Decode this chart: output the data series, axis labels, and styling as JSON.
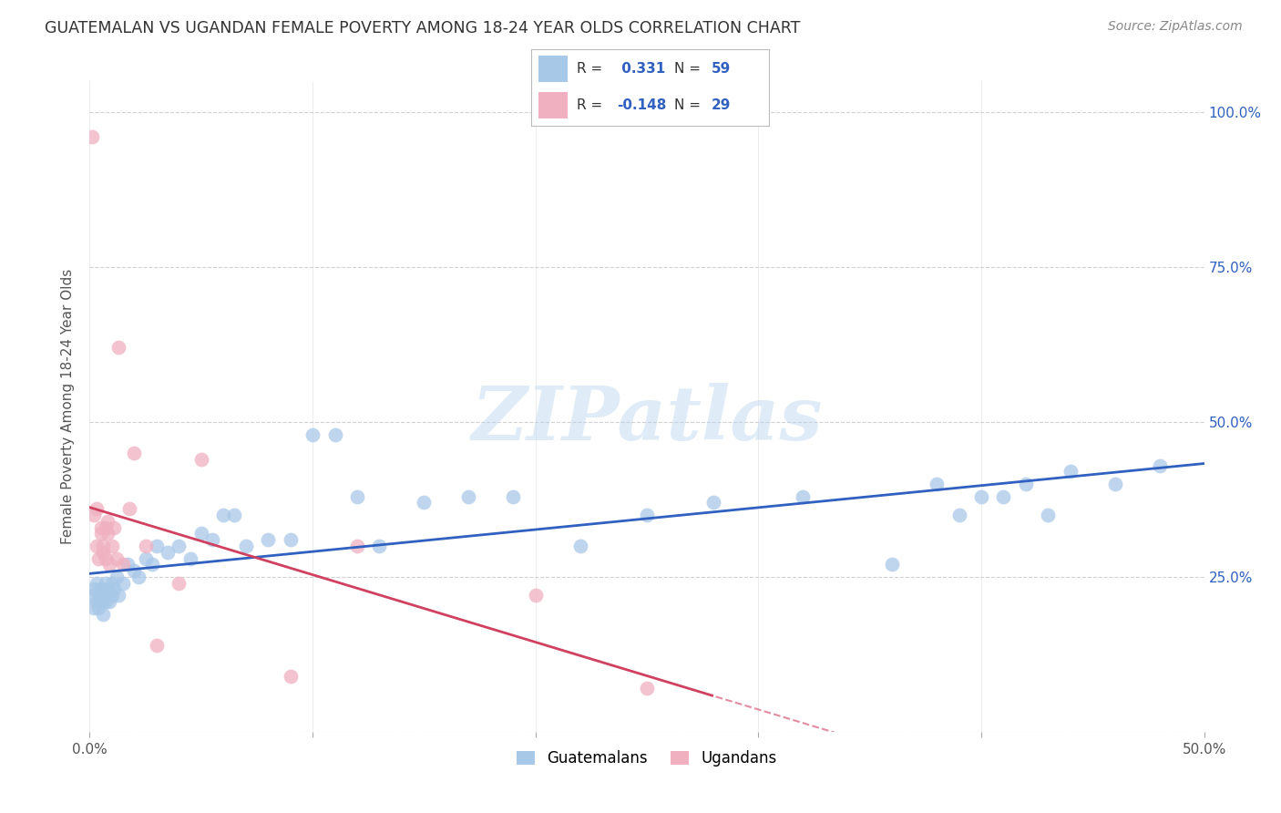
{
  "title": "GUATEMALAN VS UGANDAN FEMALE POVERTY AMONG 18-24 YEAR OLDS CORRELATION CHART",
  "source": "Source: ZipAtlas.com",
  "ylabel": "Female Poverty Among 18-24 Year Olds",
  "watermark": "ZIPatlas",
  "xlim": [
    0.0,
    0.5
  ],
  "ylim": [
    0.0,
    1.05
  ],
  "xticks": [
    0.0,
    0.1,
    0.2,
    0.3,
    0.4,
    0.5
  ],
  "xticklabels": [
    "0.0%",
    "",
    "",
    "",
    "",
    "50.0%"
  ],
  "yticks": [
    0.0,
    0.25,
    0.5,
    0.75,
    1.0
  ],
  "yticklabels_right": [
    "",
    "25.0%",
    "50.0%",
    "75.0%",
    "100.0%"
  ],
  "legend_labels": [
    "Guatemalans",
    "Ugandans"
  ],
  "r_blue": 0.331,
  "n_blue": 59,
  "r_pink": -0.148,
  "n_pink": 29,
  "blue_color": "#a8c8e8",
  "pink_color": "#f0b0c0",
  "blue_line_color": "#3060c0",
  "pink_line_color": "#d04060",
  "grid_color": "#cccccc",
  "background_color": "#ffffff",
  "title_color": "#333333",
  "source_color": "#888888",
  "legend_r_color": "#3060c0",
  "legend_n_color": "#3060c0",
  "guatemalan_x": [
    0.001,
    0.002,
    0.002,
    0.003,
    0.003,
    0.004,
    0.004,
    0.005,
    0.005,
    0.006,
    0.006,
    0.007,
    0.007,
    0.008,
    0.008,
    0.009,
    0.01,
    0.01,
    0.011,
    0.012,
    0.013,
    0.015,
    0.017,
    0.02,
    0.022,
    0.025,
    0.028,
    0.03,
    0.035,
    0.04,
    0.045,
    0.05,
    0.055,
    0.06,
    0.065,
    0.07,
    0.08,
    0.09,
    0.1,
    0.11,
    0.12,
    0.13,
    0.15,
    0.17,
    0.19,
    0.22,
    0.25,
    0.28,
    0.32,
    0.36,
    0.38,
    0.39,
    0.4,
    0.41,
    0.42,
    0.43,
    0.44,
    0.46,
    0.48
  ],
  "guatemalan_y": [
    0.22,
    0.2,
    0.23,
    0.21,
    0.24,
    0.2,
    0.22,
    0.21,
    0.23,
    0.19,
    0.22,
    0.21,
    0.24,
    0.22,
    0.23,
    0.21,
    0.22,
    0.24,
    0.23,
    0.25,
    0.22,
    0.24,
    0.27,
    0.26,
    0.25,
    0.28,
    0.27,
    0.3,
    0.29,
    0.3,
    0.28,
    0.32,
    0.31,
    0.35,
    0.35,
    0.3,
    0.31,
    0.31,
    0.48,
    0.48,
    0.38,
    0.3,
    0.37,
    0.38,
    0.38,
    0.3,
    0.35,
    0.37,
    0.38,
    0.27,
    0.4,
    0.35,
    0.38,
    0.38,
    0.4,
    0.35,
    0.42,
    0.4,
    0.43
  ],
  "ugandan_x": [
    0.001,
    0.002,
    0.003,
    0.003,
    0.004,
    0.005,
    0.005,
    0.006,
    0.006,
    0.007,
    0.007,
    0.008,
    0.008,
    0.009,
    0.01,
    0.011,
    0.012,
    0.013,
    0.015,
    0.018,
    0.02,
    0.025,
    0.03,
    0.04,
    0.05,
    0.09,
    0.12,
    0.2,
    0.25
  ],
  "ugandan_y": [
    0.96,
    0.35,
    0.36,
    0.3,
    0.28,
    0.33,
    0.32,
    0.3,
    0.29,
    0.28,
    0.33,
    0.34,
    0.32,
    0.27,
    0.3,
    0.33,
    0.28,
    0.62,
    0.27,
    0.36,
    0.45,
    0.3,
    0.14,
    0.24,
    0.44,
    0.09,
    0.3,
    0.22,
    0.07
  ]
}
